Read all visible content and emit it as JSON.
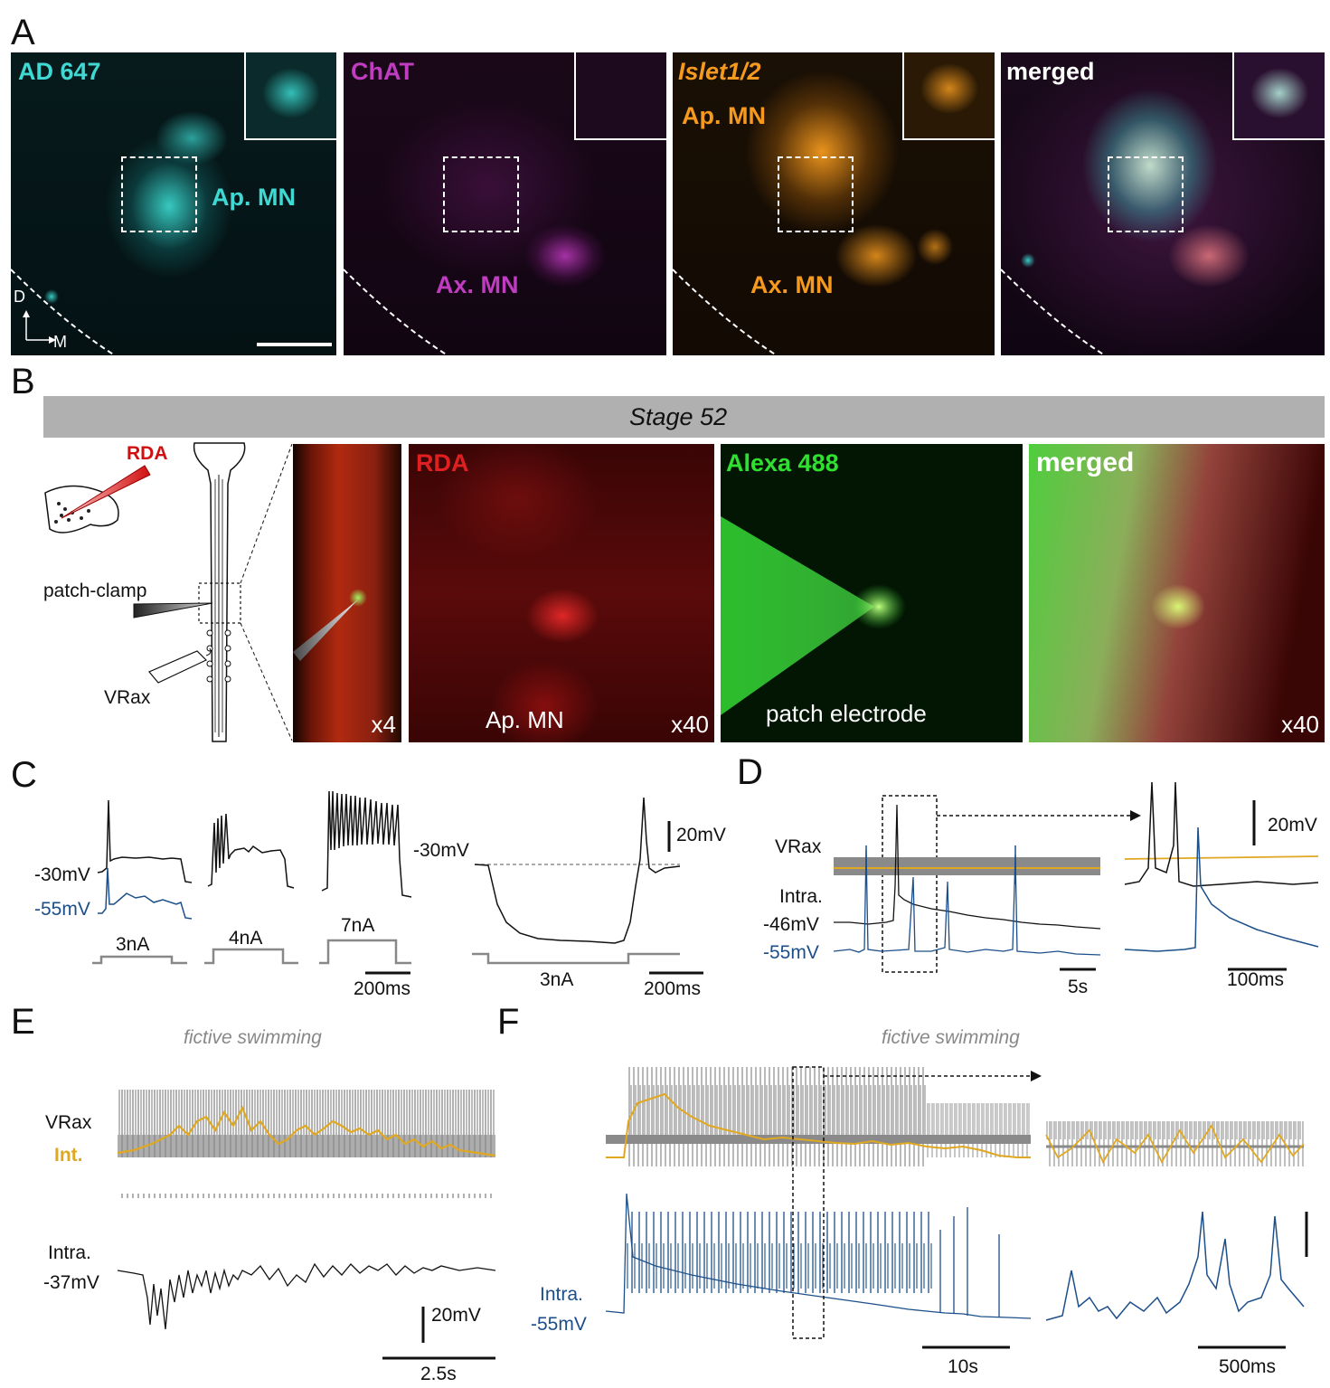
{
  "panels": [
    "A",
    "B",
    "C",
    "D",
    "E",
    "F"
  ],
  "colors": {
    "cyan": "#3fd8d2",
    "magenta": "#c03cc0",
    "orange": "#f59a1e",
    "red": "#e02020",
    "green": "#30e030",
    "gray_trace": "#8a8a8a",
    "gold_trace": "#e0a820",
    "blue_trace": "#1c4f8a",
    "black_trace": "#111111",
    "stage_bar": "#b0b0b0"
  },
  "panelA": {
    "channels": [
      {
        "label": "AD 647",
        "cells": "Ap. MN"
      },
      {
        "label": "ChAT",
        "cells": "Ax. MN"
      },
      {
        "label": "Islet1/2",
        "cells_top": "Ap. MN",
        "cells_bottom": "Ax. MN"
      },
      {
        "label": "merged"
      }
    ],
    "axis_d": "D",
    "axis_m": "M"
  },
  "panelB": {
    "stage": "Stage 52",
    "rda_label": "RDA",
    "patch_label": "patch-clamp",
    "vrax_label": "VRax",
    "images": [
      {
        "magnification": "x4"
      },
      {
        "label": "RDA",
        "caption": "Ap. MN",
        "magnification": "x40"
      },
      {
        "label": "Alexa 488",
        "caption": "patch electrode"
      },
      {
        "label": "merged",
        "magnification": "x40"
      }
    ]
  },
  "panelC": {
    "v1": "-30mV",
    "v2": "-55mV",
    "currents": [
      "3nA",
      "4nA",
      "7nA"
    ],
    "scale_time": "200ms",
    "right_v": "-30mV",
    "right_current": "3nA",
    "right_time": "200ms",
    "scale_v": "20mV"
  },
  "panelD": {
    "vrax": "VRax",
    "intra": "Intra.",
    "v1": "-46mV",
    "v2": "-55mV",
    "scale_t1": "5s",
    "scale_v": "20mV",
    "scale_t2": "100ms"
  },
  "panelE": {
    "title": "fictive swimming",
    "vrax": "VRax",
    "int": "Int.",
    "intra": "Intra.",
    "v": "-37mV",
    "scale_v": "20mV",
    "scale_t": "2.5s"
  },
  "panelF": {
    "title": "fictive swimming",
    "intra": "Intra.",
    "v": "-55mV",
    "scale_t1": "10s",
    "scale_t2": "500ms"
  }
}
